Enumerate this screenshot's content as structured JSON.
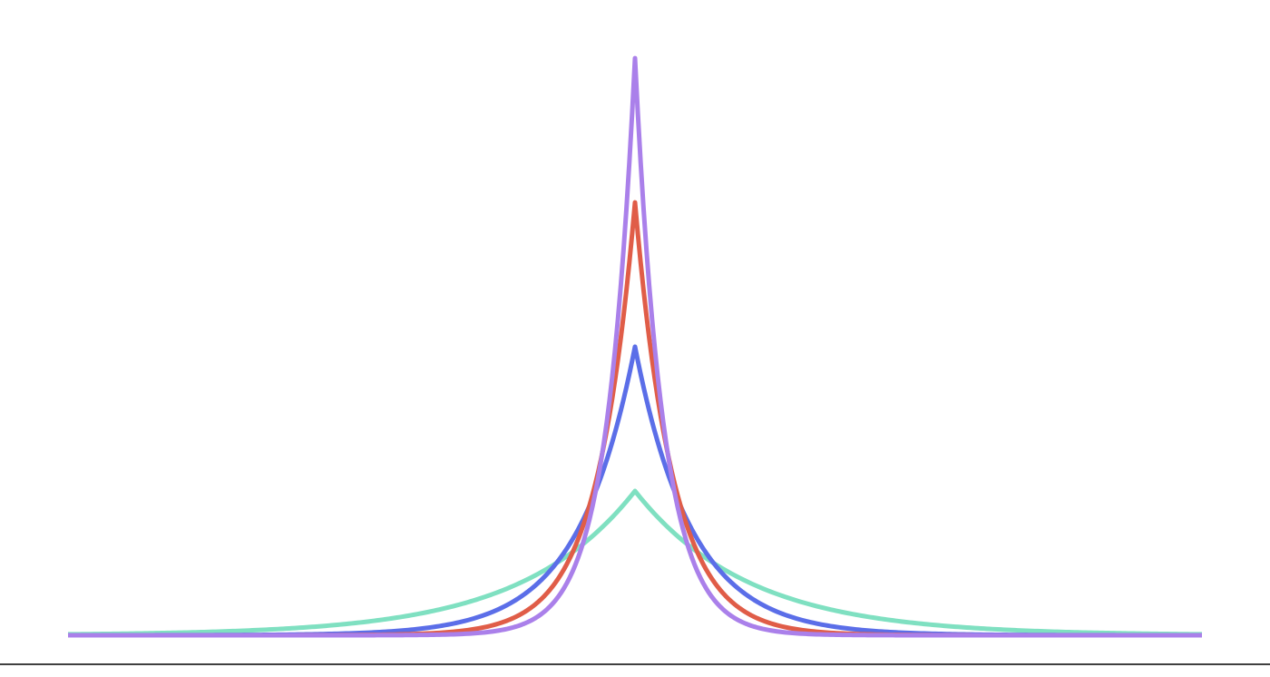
{
  "chart_data": {
    "type": "line",
    "title": "",
    "xlabel": "",
    "ylabel": "",
    "xlim": [
      -5,
      5
    ],
    "ylim": [
      0,
      2.06
    ],
    "grid": false,
    "legend": "none",
    "series": [
      {
        "color": "#7fe0c1",
        "peak": 0.5,
        "scale": 1.0
      },
      {
        "color": "#5b6ee8",
        "peak": 1.0,
        "scale": 0.5
      },
      {
        "color": "#e05d48",
        "peak": 1.5,
        "scale": 0.333
      },
      {
        "color": "#aa80ea",
        "peak": 2.0,
        "scale": 0.25
      }
    ]
  }
}
